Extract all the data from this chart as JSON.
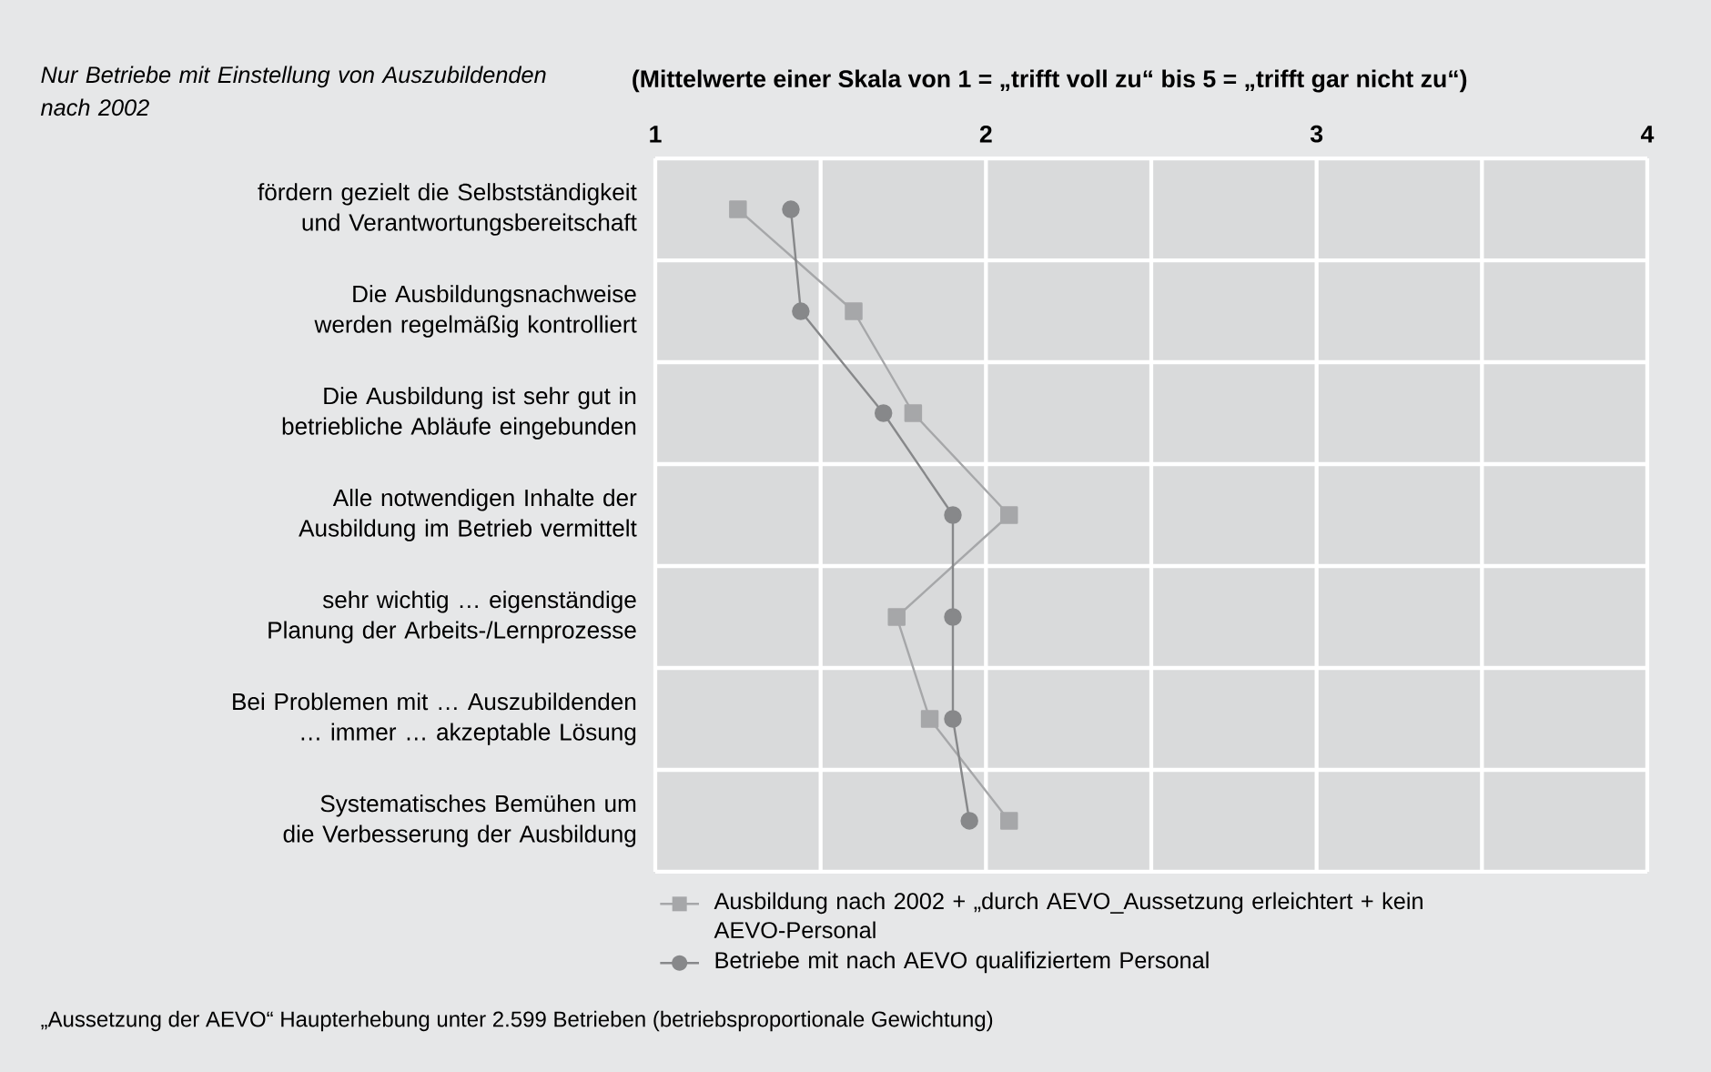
{
  "chart_data": {
    "type": "line",
    "orientation": "horizontal",
    "title": "(Mittelwerte einer Skala von 1 = „trifft voll zu“ bis 5 = „trifft gar nicht zu“)",
    "subtitle": "Nur Betriebe mit Einstellung von Auszubildenden nach 2002",
    "categories": [
      "fördern gezielt die Selbstständigkeit und Verantwortungsbereitschaft",
      "Die Ausbildungsnachweise werden regelmäßig kontrolliert",
      "Die Ausbildung ist sehr gut in betriebliche Abläufe eingebunden",
      "Alle notwendigen Inhalte der Ausbildung im Betrieb vermittelt",
      "sehr wichtig … eigenständige Planung der Arbeits-/Lernprozesse",
      "Bei Problemen mit … Auszubildenden … immer … akzeptable Lösung",
      "Systematisches Bemühen um die Verbesserung der Ausbildung"
    ],
    "series": [
      {
        "name": "Ausbildung nach 2002 + „durch AEVO_Aussetzung erleichtert + kein AEVO-Personal",
        "color": "#a6a7a9",
        "marker": "square",
        "values": [
          1.25,
          1.6,
          1.78,
          2.07,
          1.73,
          1.83,
          2.07
        ]
      },
      {
        "name": "Betriebe mit nach AEVO qualifiziertem Personal",
        "color": "#87888a",
        "marker": "circle",
        "values": [
          1.41,
          1.44,
          1.69,
          1.9,
          1.9,
          1.9,
          1.95
        ]
      }
    ],
    "xlim": [
      1,
      4
    ],
    "xticks": [
      1,
      {
        "value": 1.5,
        "label": null
      },
      2,
      {
        "value": 2.5,
        "label": null
      },
      3,
      {
        "value": 3.5,
        "label": null
      },
      4
    ],
    "grid": true,
    "legend": "bottom left",
    "annotations": [
      "„Aussetzung der AEVO“ Haupterhebung unter 2.599 Betrieben (betriebsproportionale Gewichtung)"
    ]
  }
}
